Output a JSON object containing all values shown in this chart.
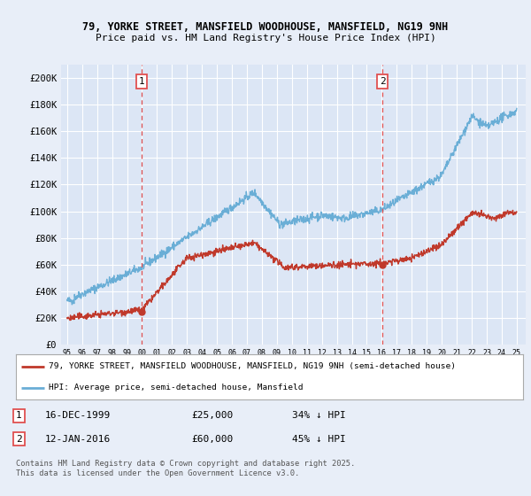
{
  "title_line1": "79, YORKE STREET, MANSFIELD WOODHOUSE, MANSFIELD, NG19 9NH",
  "title_line2": "Price paid vs. HM Land Registry's House Price Index (HPI)",
  "ylim": [
    0,
    210000
  ],
  "yticks": [
    0,
    20000,
    40000,
    60000,
    80000,
    100000,
    120000,
    140000,
    160000,
    180000,
    200000
  ],
  "ytick_labels": [
    "£0",
    "£20K",
    "£40K",
    "£60K",
    "£80K",
    "£100K",
    "£120K",
    "£140K",
    "£160K",
    "£180K",
    "£200K"
  ],
  "background_color": "#e8eef8",
  "plot_bg_color": "#dce6f5",
  "grid_color": "#ffffff",
  "hpi_color": "#6aaed6",
  "price_color": "#c0392b",
  "vline_color": "#e05050",
  "marker1_x": 1999.96,
  "marker2_x": 2016.04,
  "legend_line1": "79, YORKE STREET, MANSFIELD WOODHOUSE, MANSFIELD, NG19 9NH (semi-detached house)",
  "legend_line2": "HPI: Average price, semi-detached house, Mansfield",
  "footer": "Contains HM Land Registry data © Crown copyright and database right 2025.\nThis data is licensed under the Open Government Licence v3.0.",
  "xtick_years": [
    1995,
    1996,
    1997,
    1998,
    1999,
    2000,
    2001,
    2002,
    2003,
    2004,
    2005,
    2006,
    2007,
    2008,
    2009,
    2010,
    2011,
    2012,
    2013,
    2014,
    2015,
    2016,
    2017,
    2018,
    2019,
    2020,
    2021,
    2022,
    2023,
    2024,
    2025
  ]
}
